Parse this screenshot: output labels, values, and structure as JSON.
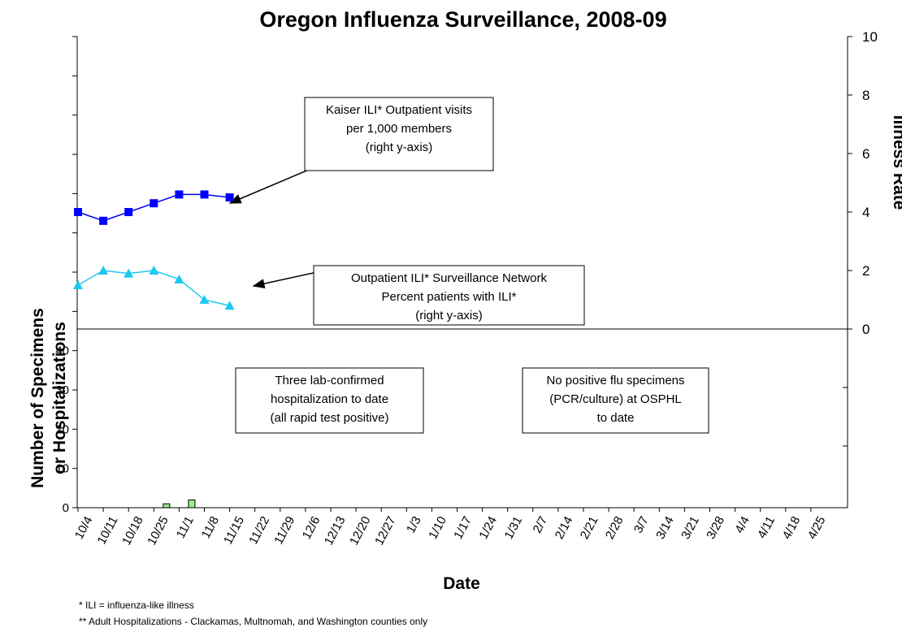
{
  "chart_data": {
    "type": "combo",
    "title": "Oregon Influenza Surveillance, 2008-09",
    "x_label": "Date",
    "y_label": [
      "Number of Specimens",
      "or Hospitalizations"
    ],
    "y2_label": "Illness Rate",
    "categories": [
      "10/4",
      "10/11",
      "10/18",
      "10/25",
      "11/1",
      "11/8",
      "11/15",
      "11/22",
      "11/29",
      "12/6",
      "12/13",
      "12/20",
      "12/27",
      "1/3",
      "1/10",
      "1/17",
      "1/24",
      "1/31",
      "2/7",
      "2/14",
      "2/21",
      "2/28",
      "3/7",
      "3/14",
      "3/21",
      "3/28",
      "4/4",
      "4/11",
      "4/18",
      "4/25"
    ],
    "ylim": [
      0,
      120
    ],
    "yticks": [
      0,
      10,
      20,
      30,
      40
    ],
    "y_minor_ticks": [
      50,
      60,
      70,
      80,
      90,
      100,
      110,
      120
    ],
    "y2lim": [
      -6.11,
      10
    ],
    "y2ticks": [
      0,
      2,
      4,
      6,
      8,
      10
    ],
    "y2_minor_ticks": [
      -2,
      -4
    ],
    "series": [
      {
        "type": "line",
        "marker": "square",
        "axis": "y2",
        "color": "#0000ff",
        "values": [
          4.0,
          3.7,
          4.0,
          4.3,
          4.6,
          4.6,
          4.5,
          null,
          null,
          null,
          null,
          null,
          null,
          null,
          null,
          null,
          null,
          null,
          null,
          null,
          null,
          null,
          null,
          null,
          null,
          null,
          null,
          null,
          null,
          null
        ]
      },
      {
        "type": "line",
        "marker": "triangle",
        "axis": "y2",
        "color": "#1ec8f0",
        "values": [
          1.5,
          2.0,
          1.9,
          2.0,
          1.7,
          1.0,
          0.8,
          null,
          null,
          null,
          null,
          null,
          null,
          null,
          null,
          null,
          null,
          null,
          null,
          null,
          null,
          null,
          null,
          null,
          null,
          null,
          null,
          null,
          null,
          null
        ]
      },
      {
        "type": "bar",
        "axis": "y",
        "color": "#99ee88",
        "values": [
          0,
          0,
          0,
          1,
          2,
          0,
          0,
          null,
          null,
          null,
          null,
          null,
          null,
          null,
          null,
          null,
          null,
          null,
          null,
          null,
          null,
          null,
          null,
          null,
          null,
          null,
          null,
          null,
          null,
          null
        ]
      }
    ],
    "annotations": [
      {
        "lines": [
          "Kaiser ILI* Outpatient visits",
          "per 1,000 members",
          "(right y-axis)"
        ]
      },
      {
        "lines": [
          "Outpatient ILI* Surveillance Network",
          "Percent patients with ILI*",
          "(right y-axis)"
        ]
      },
      {
        "lines": [
          "Three  lab-confirmed",
          "hospitalization to date",
          "(all rapid test positive)"
        ]
      },
      {
        "lines": [
          "No positive flu specimens",
          "(PCR/culture) at OSPHL",
          "to date"
        ]
      }
    ],
    "footnotes": [
      "* ILI = influenza-like illness",
      "** Adult Hospitalizations - Clackamas, Multnomah, and Washington counties only"
    ]
  }
}
